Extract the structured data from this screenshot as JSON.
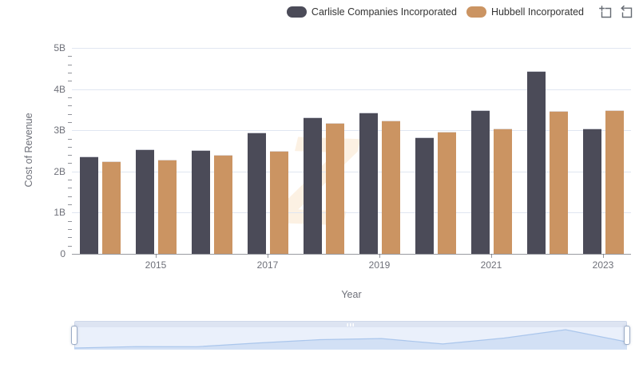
{
  "legend": {
    "items": [
      {
        "label": "Carlisle Companies Incorporated",
        "color": "#4B4B58"
      },
      {
        "label": "Hubbell Incorporated",
        "color": "#CB9462"
      }
    ]
  },
  "toolbox": {
    "icons": [
      {
        "name": "zoom-select-icon"
      },
      {
        "name": "restore-icon"
      }
    ]
  },
  "watermark": {
    "glyph": "Z"
  },
  "colors": {
    "carlisle": "#4B4B58",
    "hubbell": "#CB9462",
    "gridline": "#E0E6F1",
    "axis": "#6E7079",
    "legend_text": "#333333"
  },
  "chart_data": {
    "type": "bar",
    "title": "",
    "xlabel": "Year",
    "ylabel": "Cost of Revenue",
    "unit": "B",
    "ylim": [
      0,
      5
    ],
    "y_tick_labels": [
      "5B",
      "4B",
      "3B",
      "2B",
      "1B",
      "0"
    ],
    "x_tick_labels": [
      "2015",
      "2017",
      "2019",
      "2021",
      "2023"
    ],
    "categories": [
      2014,
      2015,
      2016,
      2017,
      2018,
      2019,
      2020,
      2021,
      2022,
      2023
    ],
    "series": [
      {
        "name": "Carlisle Companies Incorporated",
        "color": "#4B4B58",
        "values": [
          2.37,
          2.53,
          2.52,
          2.94,
          3.31,
          3.44,
          2.83,
          3.49,
          4.43,
          3.05
        ]
      },
      {
        "name": "Hubbell Incorporated",
        "color": "#CB9462",
        "values": [
          2.24,
          2.29,
          2.4,
          2.5,
          3.18,
          3.24,
          2.97,
          3.04,
          3.47,
          3.49
        ]
      }
    ],
    "grid": true,
    "legend_position": "top-right",
    "datazoom_slider": true
  }
}
